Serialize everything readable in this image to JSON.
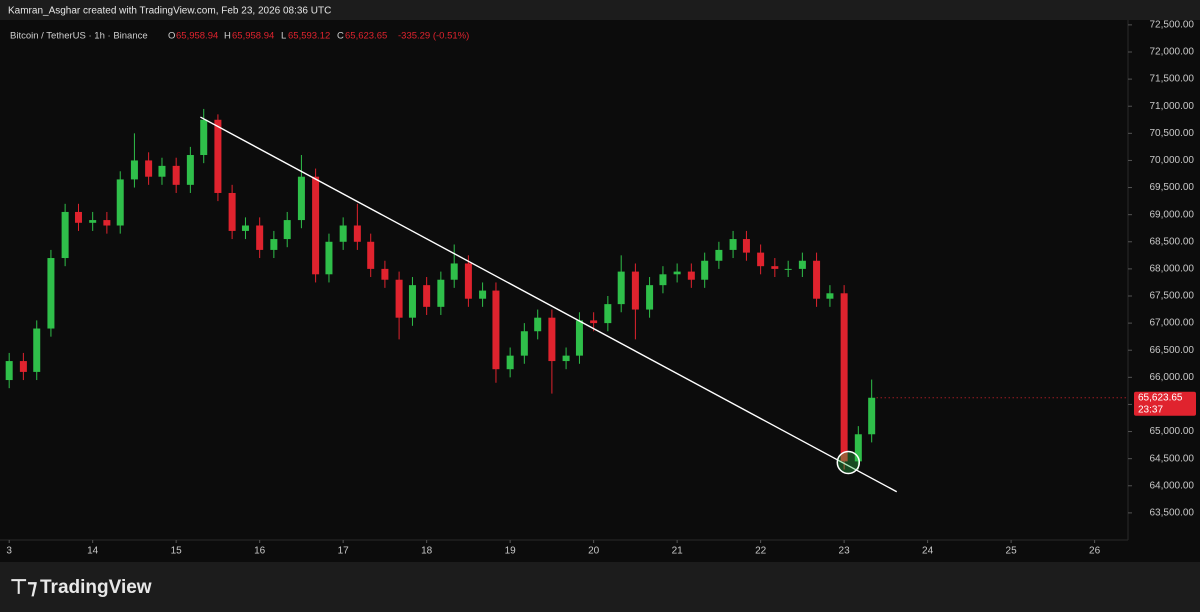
{
  "header": {
    "text": "Kamran_Asghar created with TradingView.com, Feb 23, 2026 08:36 UTC"
  },
  "footer": {
    "logo": "TradingView"
  },
  "chart_data": {
    "type": "candlestick",
    "legend": {
      "symbol": "Bitcoin / TetherUS · 1h · Binance",
      "o_label": "O",
      "o": "65,958.94",
      "h_label": "H",
      "h": "65,958.94",
      "l_label": "L",
      "l": "65,593.12",
      "c_label": "C",
      "c": "65,623.65",
      "change": "-335.29 (-0.51%)"
    },
    "x": [
      13,
      13.17,
      13.33,
      13.5,
      13.67,
      13.83,
      14,
      14.17,
      14.33,
      14.5,
      14.67,
      14.83,
      15,
      15.17,
      15.33,
      15.5,
      15.67,
      15.83,
      16,
      16.17,
      16.33,
      16.5,
      16.67,
      16.83,
      17,
      17.17,
      17.33,
      17.5,
      17.67,
      17.83,
      18,
      18.17,
      18.33,
      18.5,
      18.67,
      18.83,
      19,
      19.17,
      19.33,
      19.5,
      19.67,
      19.83,
      20,
      20.17,
      20.33,
      20.5,
      20.67,
      20.83,
      21,
      21.17,
      21.33,
      21.5,
      21.67,
      21.83,
      22,
      22.17,
      22.33,
      22.5,
      22.67,
      22.83,
      23,
      23.17,
      23.33
    ],
    "open": [
      65950,
      66300,
      66100,
      66900,
      68200,
      69050,
      68850,
      68900,
      68800,
      69650,
      70000,
      69700,
      69900,
      69550,
      70100,
      70750,
      69400,
      68700,
      68800,
      68350,
      68550,
      68900,
      69700,
      67900,
      68500,
      68800,
      68500,
      68000,
      67800,
      67100,
      67700,
      67300,
      67800,
      68100,
      67450,
      67600,
      66150,
      66400,
      66850,
      67100,
      66300,
      66400,
      67050,
      67000,
      67350,
      67950,
      67250,
      67700,
      67900,
      67950,
      67800,
      68150,
      68350,
      68550,
      68300,
      68050,
      68000,
      68000,
      68150,
      67450,
      67550,
      64450,
      64950
    ],
    "high": [
      66450,
      66450,
      67050,
      68350,
      69200,
      69200,
      69050,
      69050,
      69800,
      70500,
      70150,
      70050,
      70050,
      70250,
      70950,
      70850,
      69550,
      68950,
      68950,
      68700,
      69050,
      70100,
      69850,
      68650,
      68950,
      69200,
      68650,
      68150,
      67950,
      67850,
      67850,
      67950,
      68450,
      68250,
      67750,
      67750,
      66550,
      67000,
      67250,
      67250,
      66550,
      67200,
      67200,
      67500,
      68250,
      68100,
      67850,
      68050,
      68100,
      68100,
      68300,
      68500,
      68700,
      68700,
      68450,
      68200,
      68150,
      68300,
      68300,
      67700,
      67700,
      65100,
      65958.94
    ],
    "low": [
      65800,
      65950,
      65950,
      66750,
      68050,
      68700,
      68700,
      68650,
      68650,
      69500,
      69550,
      69550,
      69400,
      69400,
      69950,
      69250,
      68550,
      68550,
      68200,
      68200,
      68400,
      68750,
      67750,
      67750,
      68350,
      68350,
      67850,
      67650,
      66700,
      66950,
      67150,
      67150,
      67650,
      67300,
      67300,
      65900,
      66000,
      66250,
      66700,
      65700,
      66150,
      66250,
      66850,
      66850,
      67200,
      66700,
      67100,
      67550,
      67750,
      67650,
      67650,
      68000,
      68200,
      68150,
      67900,
      67850,
      67850,
      67850,
      67300,
      67300,
      64300,
      64300,
      64800
    ],
    "close": [
      66300,
      66100,
      66900,
      68200,
      69050,
      68850,
      68900,
      68800,
      69650,
      70000,
      69700,
      69900,
      69550,
      70100,
      70750,
      69400,
      68700,
      68800,
      68350,
      68550,
      68900,
      69700,
      67900,
      68500,
      68800,
      68500,
      68000,
      67800,
      67100,
      67700,
      67300,
      67800,
      68100,
      67450,
      67600,
      66150,
      66400,
      66850,
      67100,
      66300,
      66400,
      67050,
      67000,
      67350,
      67950,
      67250,
      67700,
      67900,
      67950,
      67800,
      68150,
      68350,
      68550,
      68300,
      68050,
      68000,
      68000,
      68150,
      67450,
      67550,
      64450,
      64950,
      65623.65
    ],
    "up_color": "#2fbf4a",
    "down_color": "#e0232e",
    "xlim": [
      12.89,
      26.4
    ],
    "ylim": [
      63000,
      72590
    ],
    "xticks": [
      {
        "value": 13,
        "label": "3"
      },
      14,
      15,
      16,
      17,
      18,
      19,
      20,
      21,
      22,
      23,
      24,
      25,
      26
    ],
    "yticks": [
      {
        "value": 63500,
        "label": "63,500.00"
      },
      {
        "value": 64000,
        "label": "64,000.00"
      },
      {
        "value": 64500,
        "label": "64,500.00"
      },
      {
        "value": 65000,
        "label": "65,000.00"
      },
      {
        "value": 65500,
        "label": "65,500.00"
      },
      {
        "value": 66000,
        "label": "66,000.00"
      },
      {
        "value": 66500,
        "label": "66,500.00"
      },
      {
        "value": 67000,
        "label": "67,000.00"
      },
      {
        "value": 67500,
        "label": "67,500.00"
      },
      {
        "value": 68000,
        "label": "68,000.00"
      },
      {
        "value": 68500,
        "label": "68,500.00"
      },
      {
        "value": 69000,
        "label": "69,000.00"
      },
      {
        "value": 69500,
        "label": "69,500.00"
      },
      {
        "value": 70000,
        "label": "70,000.00"
      },
      {
        "value": 70500,
        "label": "70,500.00"
      },
      {
        "value": 71000,
        "label": "71,000.00"
      },
      {
        "value": 71500,
        "label": "71,500.00"
      },
      {
        "value": 72000,
        "label": "72,000.00"
      },
      {
        "value": 72500,
        "label": "72,500.00"
      }
    ],
    "last_price": {
      "value": 65623.65,
      "label": "65,623.65",
      "countdown": "23:37"
    },
    "trendline": {
      "x": [
        15.29,
        23.63
      ],
      "y": [
        70800,
        63890
      ],
      "color": "#ffffff"
    },
    "highlight": {
      "x": 23.05,
      "y": 64430,
      "color": "#2fbf4a"
    }
  }
}
